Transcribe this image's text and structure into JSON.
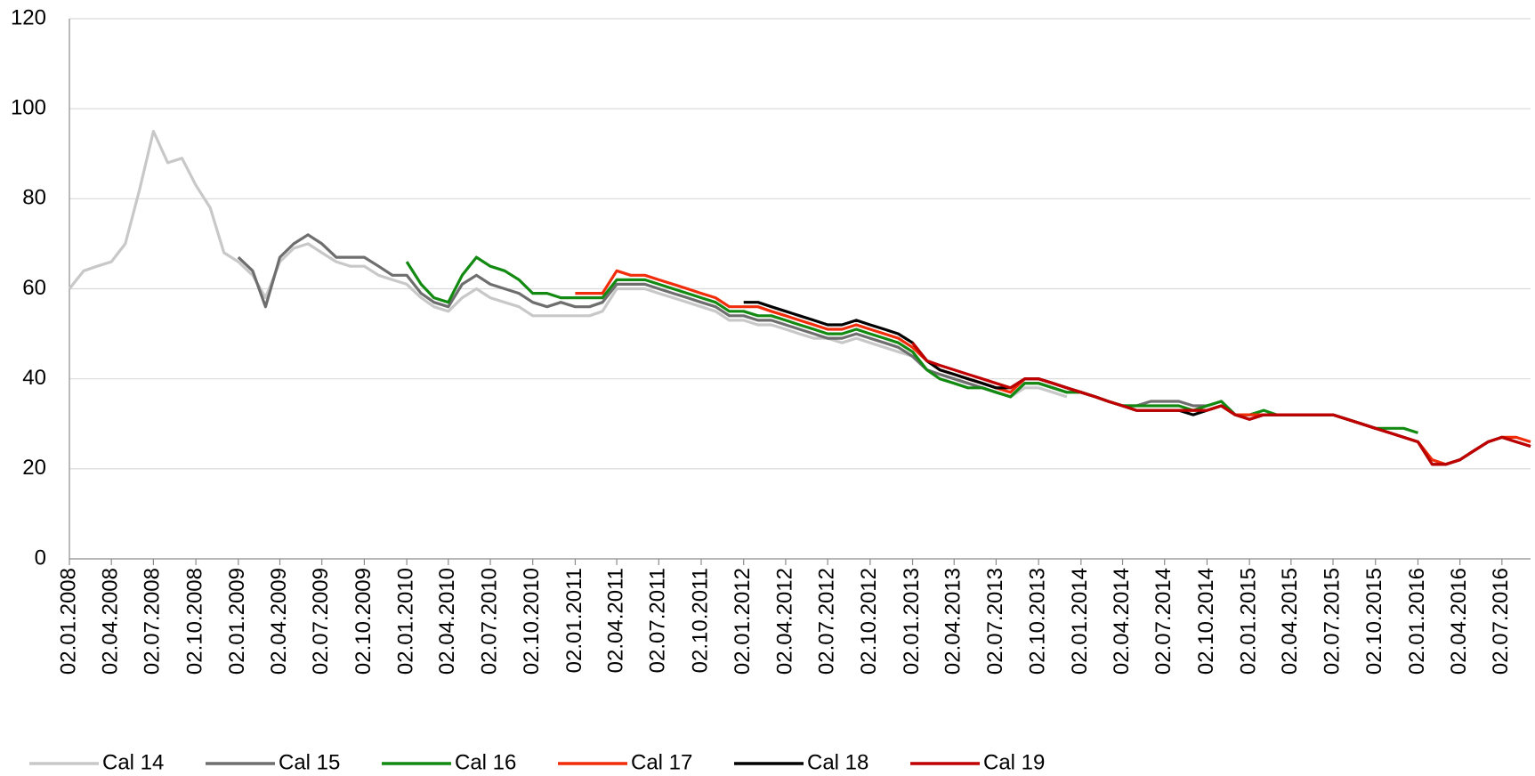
{
  "chart_data": {
    "type": "line",
    "x": [
      "02.01.2008",
      "02.02.2008",
      "02.03.2008",
      "02.04.2008",
      "02.05.2008",
      "02.06.2008",
      "02.07.2008",
      "02.08.2008",
      "02.09.2008",
      "02.10.2008",
      "02.11.2008",
      "02.12.2008",
      "02.01.2009",
      "02.02.2009",
      "02.03.2009",
      "02.04.2009",
      "02.05.2009",
      "02.06.2009",
      "02.07.2009",
      "02.08.2009",
      "02.09.2009",
      "02.10.2009",
      "02.11.2009",
      "02.12.2009",
      "02.01.2010",
      "02.02.2010",
      "02.03.2010",
      "02.04.2010",
      "02.05.2010",
      "02.06.2010",
      "02.07.2010",
      "02.08.2010",
      "02.09.2010",
      "02.10.2010",
      "02.11.2010",
      "02.12.2010",
      "02.01.2011",
      "02.02.2011",
      "02.03.2011",
      "02.04.2011",
      "02.05.2011",
      "02.06.2011",
      "02.07.2011",
      "02.08.2011",
      "02.09.2011",
      "02.10.2011",
      "02.11.2011",
      "02.12.2011",
      "02.01.2012",
      "02.02.2012",
      "02.03.2012",
      "02.04.2012",
      "02.05.2012",
      "02.06.2012",
      "02.07.2012",
      "02.08.2012",
      "02.09.2012",
      "02.10.2012",
      "02.11.2012",
      "02.12.2012",
      "02.01.2013",
      "02.02.2013",
      "02.03.2013",
      "02.04.2013",
      "02.05.2013",
      "02.06.2013",
      "02.07.2013",
      "02.08.2013",
      "02.09.2013",
      "02.10.2013",
      "02.11.2013",
      "02.12.2013",
      "02.01.2014",
      "02.02.2014",
      "02.03.2014",
      "02.04.2014",
      "02.05.2014",
      "02.06.2014",
      "02.07.2014",
      "02.08.2014",
      "02.09.2014",
      "02.10.2014",
      "02.11.2014",
      "02.12.2014",
      "02.01.2015",
      "02.02.2015",
      "02.03.2015",
      "02.04.2015",
      "02.05.2015",
      "02.06.2015",
      "02.07.2015",
      "02.08.2015",
      "02.09.2015",
      "02.10.2015",
      "02.11.2015",
      "02.12.2015",
      "02.01.2016",
      "02.02.2016",
      "02.03.2016",
      "02.04.2016",
      "02.05.2016",
      "02.06.2016",
      "02.07.2016",
      "02.08.2016",
      "02.09.2016"
    ],
    "series": [
      {
        "name": "Cal 14",
        "color": "#c8c8c8",
        "values": [
          60,
          64,
          65,
          66,
          70,
          82,
          95,
          88,
          89,
          83,
          78,
          68,
          66,
          63,
          58,
          66,
          69,
          70,
          68,
          66,
          65,
          65,
          63,
          62,
          61,
          58,
          56,
          55,
          58,
          60,
          58,
          57,
          56,
          54,
          54,
          54,
          54,
          54,
          55,
          60,
          60,
          60,
          59,
          58,
          57,
          56,
          55,
          53,
          53,
          52,
          52,
          51,
          50,
          49,
          49,
          48,
          49,
          48,
          47,
          46,
          45,
          42,
          41,
          40,
          39,
          38,
          37,
          36,
          38,
          38,
          37,
          36,
          null,
          null,
          null,
          null,
          null,
          null,
          null,
          null,
          null,
          null,
          null,
          null,
          null,
          null,
          null,
          null,
          null,
          null,
          null,
          null,
          null,
          null,
          null,
          null,
          null,
          null,
          null,
          null,
          null,
          null,
          null,
          null,
          null
        ]
      },
      {
        "name": "Cal 15",
        "color": "#6e6e6e",
        "values": [
          null,
          null,
          null,
          null,
          null,
          null,
          null,
          null,
          null,
          null,
          null,
          null,
          67,
          64,
          56,
          67,
          70,
          72,
          70,
          67,
          67,
          67,
          65,
          63,
          63,
          59,
          57,
          56,
          61,
          63,
          61,
          60,
          59,
          57,
          56,
          57,
          56,
          56,
          57,
          61,
          61,
          61,
          60,
          59,
          58,
          57,
          56,
          54,
          54,
          53,
          53,
          52,
          51,
          50,
          49,
          49,
          50,
          49,
          48,
          47,
          45,
          42,
          41,
          40,
          39,
          38,
          37,
          36,
          39,
          39,
          38,
          37,
          37,
          36,
          35,
          34,
          34,
          35,
          35,
          35,
          34,
          34,
          35,
          32,
          null,
          null,
          null,
          null,
          null,
          null,
          null,
          null,
          null,
          null,
          null,
          null,
          null,
          null,
          null,
          null,
          null,
          null,
          null,
          null,
          null
        ]
      },
      {
        "name": "Cal 16",
        "color": "#128a12",
        "values": [
          null,
          null,
          null,
          null,
          null,
          null,
          null,
          null,
          null,
          null,
          null,
          null,
          null,
          null,
          null,
          null,
          null,
          null,
          null,
          null,
          null,
          null,
          null,
          null,
          66,
          61,
          58,
          57,
          63,
          67,
          65,
          64,
          62,
          59,
          59,
          58,
          58,
          58,
          58,
          62,
          62,
          62,
          61,
          60,
          59,
          58,
          57,
          55,
          55,
          54,
          54,
          53,
          52,
          51,
          50,
          50,
          51,
          50,
          49,
          48,
          46,
          42,
          40,
          39,
          38,
          38,
          37,
          36,
          39,
          39,
          38,
          37,
          37,
          36,
          35,
          34,
          34,
          34,
          34,
          34,
          33,
          34,
          35,
          32,
          32,
          33,
          32,
          32,
          32,
          32,
          32,
          31,
          30,
          29,
          29,
          29,
          28,
          null,
          null,
          null,
          null,
          null,
          null,
          null,
          null
        ]
      },
      {
        "name": "Cal 17",
        "color": "#f02c0a",
        "values": [
          null,
          null,
          null,
          null,
          null,
          null,
          null,
          null,
          null,
          null,
          null,
          null,
          null,
          null,
          null,
          null,
          null,
          null,
          null,
          null,
          null,
          null,
          null,
          null,
          null,
          null,
          null,
          null,
          null,
          null,
          null,
          null,
          null,
          null,
          null,
          null,
          59,
          59,
          59,
          64,
          63,
          63,
          62,
          61,
          60,
          59,
          58,
          56,
          56,
          56,
          55,
          54,
          53,
          52,
          51,
          51,
          52,
          51,
          50,
          49,
          47,
          44,
          42,
          41,
          40,
          39,
          38,
          37,
          40,
          40,
          39,
          38,
          37,
          36,
          35,
          34,
          33,
          33,
          33,
          33,
          33,
          33,
          34,
          32,
          32,
          32,
          32,
          32,
          32,
          32,
          32,
          31,
          30,
          29,
          28,
          27,
          26,
          22,
          21,
          22,
          24,
          26,
          27,
          27,
          26
        ]
      },
      {
        "name": "Cal 18",
        "color": "#000000",
        "values": [
          null,
          null,
          null,
          null,
          null,
          null,
          null,
          null,
          null,
          null,
          null,
          null,
          null,
          null,
          null,
          null,
          null,
          null,
          null,
          null,
          null,
          null,
          null,
          null,
          null,
          null,
          null,
          null,
          null,
          null,
          null,
          null,
          null,
          null,
          null,
          null,
          null,
          null,
          null,
          null,
          null,
          null,
          null,
          null,
          null,
          null,
          null,
          null,
          57,
          57,
          56,
          55,
          54,
          53,
          52,
          52,
          53,
          52,
          51,
          50,
          48,
          44,
          42,
          41,
          40,
          39,
          38,
          38,
          40,
          40,
          39,
          38,
          37,
          36,
          35,
          34,
          33,
          33,
          33,
          33,
          32,
          33,
          34,
          32,
          31,
          32,
          32,
          32,
          32,
          32,
          32,
          31,
          30,
          29,
          28,
          27,
          26,
          21,
          21,
          22,
          24,
          26,
          27,
          26,
          25
        ]
      },
      {
        "name": "Cal 19",
        "color": "#c00000",
        "values": [
          null,
          null,
          null,
          null,
          null,
          null,
          null,
          null,
          null,
          null,
          null,
          null,
          null,
          null,
          null,
          null,
          null,
          null,
          null,
          null,
          null,
          null,
          null,
          null,
          null,
          null,
          null,
          null,
          null,
          null,
          null,
          null,
          null,
          null,
          null,
          null,
          null,
          null,
          null,
          null,
          null,
          null,
          null,
          null,
          null,
          null,
          null,
          null,
          null,
          null,
          null,
          null,
          null,
          null,
          null,
          null,
          null,
          null,
          null,
          null,
          48,
          44,
          43,
          42,
          41,
          40,
          39,
          38,
          40,
          40,
          39,
          38,
          37,
          36,
          35,
          34,
          33,
          33,
          33,
          33,
          33,
          33,
          34,
          32,
          31,
          32,
          32,
          32,
          32,
          32,
          32,
          31,
          30,
          29,
          28,
          27,
          26,
          21,
          21,
          22,
          24,
          26,
          27,
          26,
          25
        ]
      }
    ],
    "xlim": [
      "02.01.2008",
      "02.09.2016"
    ],
    "xticks": [
      "02.01.2008",
      "02.04.2008",
      "02.07.2008",
      "02.10.2008",
      "02.01.2009",
      "02.04.2009",
      "02.07.2009",
      "02.10.2009",
      "02.01.2010",
      "02.04.2010",
      "02.07.2010",
      "02.10.2010",
      "02.01.2011",
      "02.04.2011",
      "02.07.2011",
      "02.10.2011",
      "02.01.2012",
      "02.04.2012",
      "02.07.2012",
      "02.10.2012",
      "02.01.2013",
      "02.04.2013",
      "02.07.2013",
      "02.10.2013",
      "02.01.2014",
      "02.04.2014",
      "02.07.2014",
      "02.10.2014",
      "02.01.2015",
      "02.04.2015",
      "02.07.2015",
      "02.10.2015",
      "02.01.2016",
      "02.04.2016",
      "02.07.2016"
    ],
    "ylim": [
      0,
      120
    ],
    "yticks": [
      0,
      20,
      40,
      60,
      80,
      100,
      120
    ],
    "grid": true,
    "legend": "bottom"
  }
}
